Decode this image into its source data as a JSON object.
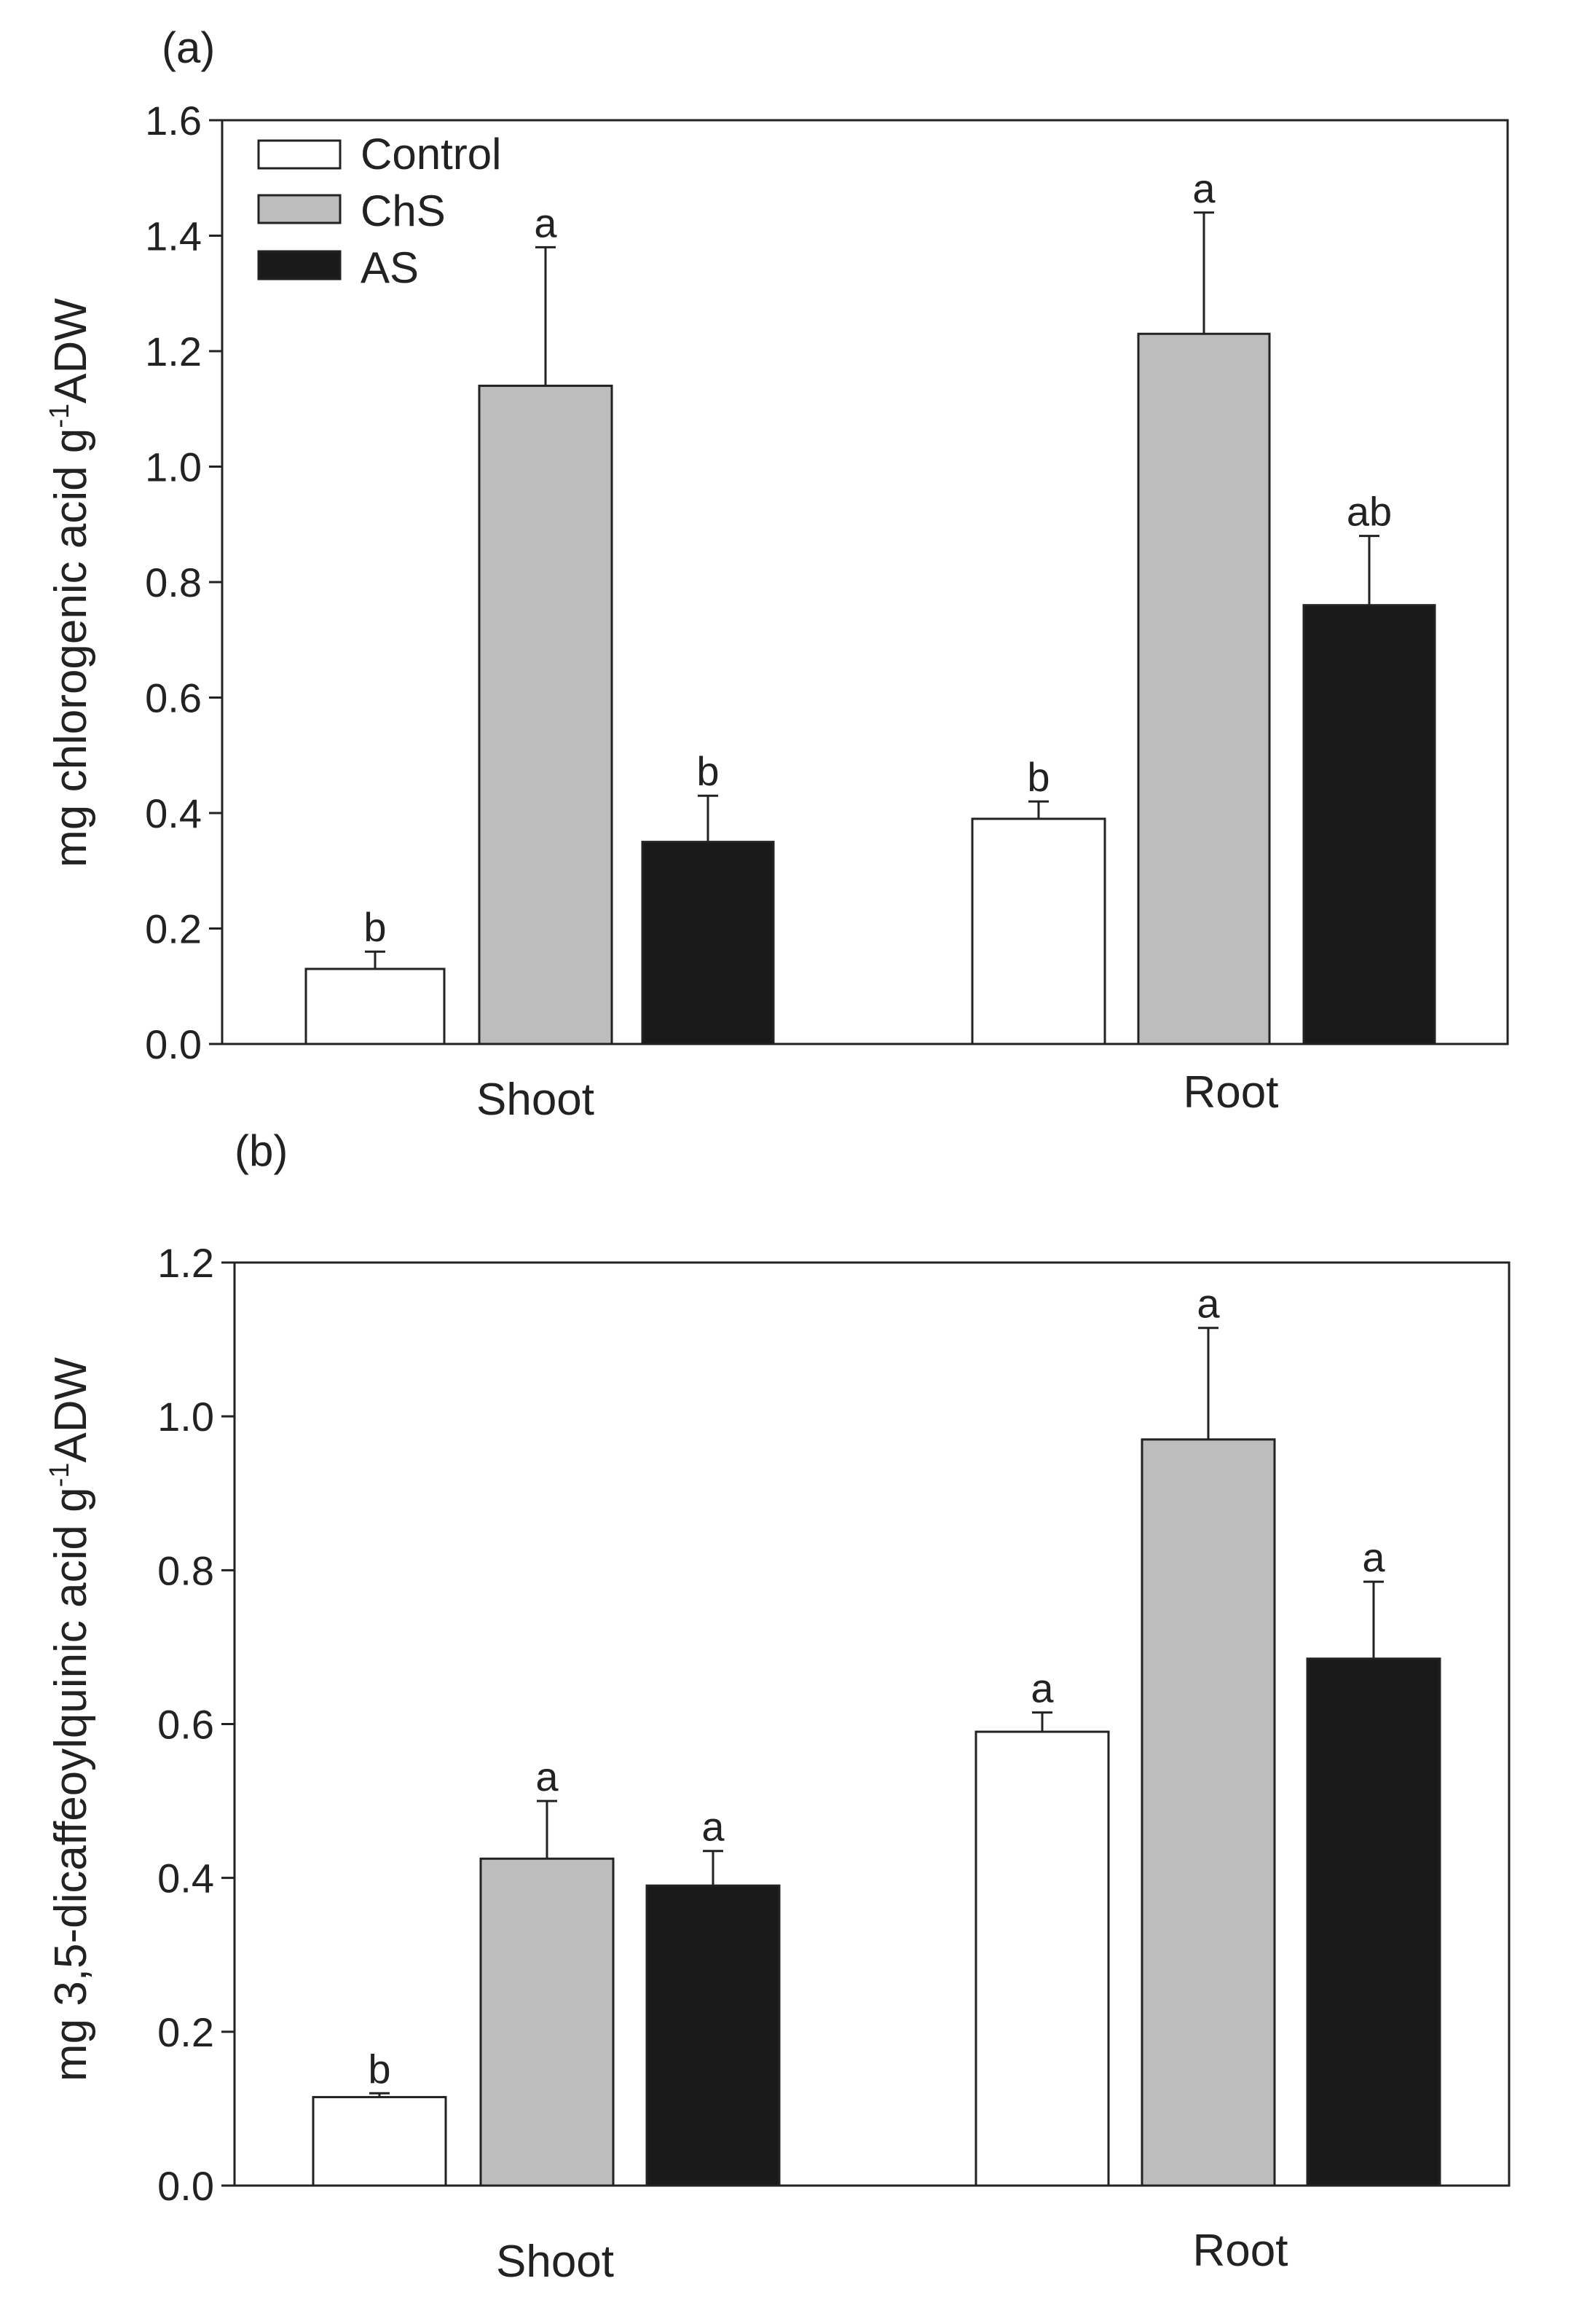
{
  "chart_data": [
    {
      "panel": "(a)",
      "type": "bar",
      "categories": [
        "Shoot",
        "Root"
      ],
      "series": [
        {
          "name": "Control",
          "color": "#ffffff",
          "values": [
            0.13,
            0.39
          ],
          "errors": [
            0.03,
            0.03
          ],
          "letters": [
            "b",
            "b"
          ]
        },
        {
          "name": "ChS",
          "color": "#bdbdbd",
          "values": [
            1.14,
            1.23
          ],
          "errors": [
            0.24,
            0.21
          ],
          "letters": [
            "a",
            "a"
          ]
        },
        {
          "name": "AS",
          "color": "#1a1a1a",
          "values": [
            0.35,
            0.76
          ],
          "errors": [
            0.08,
            0.12
          ],
          "letters": [
            "b",
            "ab"
          ]
        }
      ],
      "ylabel_main": "mg chlorogenic acid g",
      "ylabel_sup": "-1",
      "ylabel_tail": "ADW",
      "ylim": [
        0,
        1.6
      ],
      "yticks": [
        "0.0",
        "0.2",
        "0.4",
        "0.6",
        "0.8",
        "1.0",
        "1.2",
        "1.4",
        "1.6"
      ],
      "legend": [
        "Control",
        "ChS",
        "AS"
      ],
      "legend_position": "top-left"
    },
    {
      "panel": "(b)",
      "type": "bar",
      "categories": [
        "Shoot",
        "Root"
      ],
      "series": [
        {
          "name": "Control",
          "color": "#ffffff",
          "values": [
            0.115,
            0.59
          ],
          "errors": [
            0.005,
            0.025
          ],
          "letters": [
            "b",
            "a"
          ]
        },
        {
          "name": "ChS",
          "color": "#bdbdbd",
          "values": [
            0.425,
            0.97
          ],
          "errors": [
            0.075,
            0.145
          ],
          "letters": [
            "a",
            "a"
          ]
        },
        {
          "name": "AS",
          "color": "#1a1a1a",
          "values": [
            0.39,
            0.685
          ],
          "errors": [
            0.045,
            0.1
          ],
          "letters": [
            "a",
            "a"
          ]
        }
      ],
      "ylabel_main": "mg 3,5-dicaffeoylquinic acid g",
      "ylabel_sup": "-1",
      "ylabel_tail": "ADW",
      "ylim": [
        0,
        1.2
      ],
      "yticks": [
        "0.0",
        "0.2",
        "0.4",
        "0.6",
        "0.8",
        "1.0",
        "1.2"
      ],
      "legend": [],
      "legend_position": "none"
    }
  ]
}
